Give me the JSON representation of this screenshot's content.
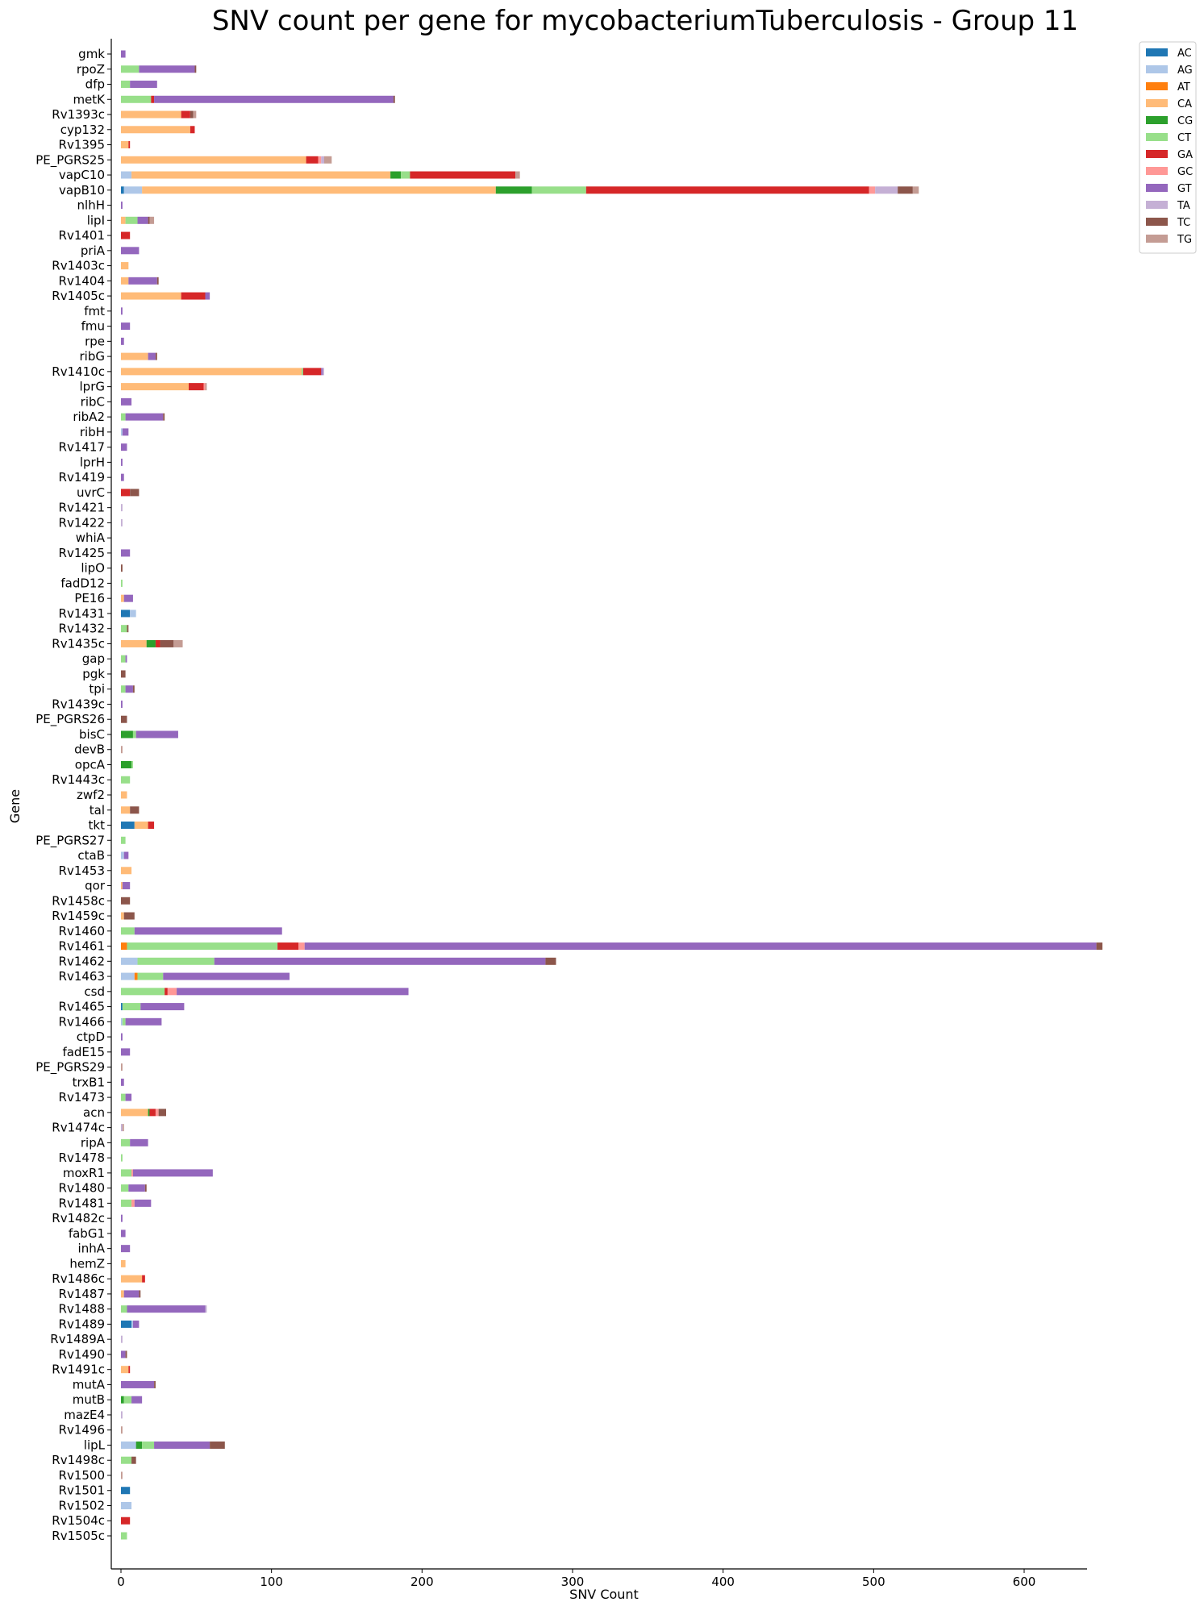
{
  "chart_data": {
    "type": "bar",
    "orientation": "horizontal",
    "stacked": true,
    "title": "SNV count per gene for mycobacteriumTuberculosis - Group 11",
    "xlabel": "SNV Count",
    "ylabel": "Gene",
    "xlim": [
      0,
      652
    ],
    "xticks": [
      0,
      100,
      200,
      300,
      400,
      500,
      600
    ],
    "grid": false,
    "legend_position": "top-right outside",
    "categories": [
      "gmk",
      "rpoZ",
      "dfp",
      "metK",
      "Rv1393c",
      "cyp132",
      "Rv1395",
      "PE_PGRS25",
      "vapC10",
      "vapB10",
      "nlhH",
      "lipI",
      "Rv1401",
      "priA",
      "Rv1403c",
      "Rv1404",
      "Rv1405c",
      "fmt",
      "fmu",
      "rpe",
      "ribG",
      "Rv1410c",
      "lprG",
      "ribC",
      "ribA2",
      "ribH",
      "Rv1417",
      "lprH",
      "Rv1419",
      "uvrC",
      "Rv1421",
      "Rv1422",
      "whiA",
      "Rv1425",
      "lipO",
      "fadD12",
      "PE16",
      "Rv1431",
      "Rv1432",
      "Rv1435c",
      "gap",
      "pgk",
      "tpi",
      "Rv1439c",
      "PE_PGRS26",
      "bisC",
      "devB",
      "opcA",
      "Rv1443c",
      "zwf2",
      "tal",
      "tkt",
      "PE_PGRS27",
      "ctaB",
      "Rv1453",
      "qor",
      "Rv1458c",
      "Rv1459c",
      "Rv1460",
      "Rv1461",
      "Rv1462",
      "Rv1463",
      "csd",
      "Rv1465",
      "Rv1466",
      "ctpD",
      "fadE15",
      "PE_PGRS29",
      "trxB1",
      "Rv1473",
      "acn",
      "Rv1474c",
      "ripA",
      "Rv1478",
      "moxR1",
      "Rv1480",
      "Rv1481",
      "Rv1482c",
      "fabG1",
      "inhA",
      "hemZ",
      "Rv1486c",
      "Rv1487",
      "Rv1488",
      "Rv1489",
      "Rv1489A",
      "Rv1490",
      "Rv1491c",
      "mutA",
      "mutB",
      "mazE4",
      "Rv1496",
      "lipL",
      "Rv1498c",
      "Rv1500",
      "Rv1501",
      "Rv1502",
      "Rv1504c",
      "Rv1505c"
    ],
    "series": [
      {
        "name": "AC",
        "color": "#1f77b4",
        "values": [
          0,
          0,
          0,
          0,
          0,
          0,
          0,
          0,
          0,
          2,
          0,
          0,
          0,
          0,
          0,
          0,
          0,
          0,
          0,
          0,
          0,
          0,
          0,
          0,
          0,
          0,
          0,
          0,
          0,
          0,
          0,
          0,
          0,
          0,
          0,
          0,
          0,
          6,
          0,
          0,
          0,
          0,
          0,
          0,
          0,
          0,
          0,
          0,
          0,
          0,
          0,
          9,
          0,
          0,
          0,
          0,
          0,
          0,
          0,
          0,
          0,
          0,
          0,
          1,
          0,
          0,
          0,
          0,
          0,
          0,
          0,
          0,
          0,
          0,
          0,
          0,
          0,
          0,
          0,
          0,
          0,
          0,
          0,
          0,
          7,
          0,
          0,
          0,
          0,
          0,
          0,
          0,
          0,
          0,
          0,
          6,
          0,
          0,
          0
        ]
      },
      {
        "name": "AG",
        "color": "#aec7e8",
        "values": [
          0,
          0,
          0,
          0,
          0,
          0,
          0,
          0,
          7,
          12,
          0,
          0,
          0,
          0,
          0,
          0,
          0,
          0,
          0,
          0,
          0,
          0,
          0,
          0,
          0,
          1,
          0,
          0,
          0,
          0,
          0,
          0,
          0,
          0,
          0,
          0,
          0,
          4,
          0,
          0,
          0,
          0,
          0,
          0,
          0,
          0,
          0,
          0,
          0,
          0,
          0,
          0,
          0,
          2,
          0,
          0,
          0,
          0,
          0,
          0,
          11,
          9,
          0,
          0,
          1,
          0,
          0,
          0,
          0,
          0,
          0,
          0,
          0,
          0,
          0,
          0,
          0,
          0,
          0,
          0,
          0,
          0,
          0,
          0,
          1,
          0,
          0,
          0,
          0,
          0,
          0,
          0,
          10,
          0,
          0,
          0,
          7,
          0,
          0
        ]
      },
      {
        "name": "AT",
        "color": "#ff7f0e",
        "values": [
          0,
          0,
          0,
          0,
          0,
          0,
          0,
          0,
          0,
          0,
          0,
          0,
          0,
          0,
          0,
          0,
          0,
          0,
          0,
          0,
          0,
          0,
          0,
          0,
          0,
          0,
          0,
          0,
          0,
          0,
          0,
          0,
          0,
          0,
          0,
          0,
          0,
          0,
          0,
          0,
          0,
          0,
          0,
          0,
          0,
          0,
          0,
          0,
          0,
          0,
          0,
          0,
          0,
          0,
          0,
          0,
          0,
          0,
          0,
          4,
          0,
          2,
          0,
          0,
          0,
          0,
          0,
          0,
          0,
          0,
          0,
          0,
          0,
          0,
          0,
          0,
          0,
          0,
          0,
          0,
          0,
          0,
          0,
          0,
          0,
          0,
          0,
          0,
          0,
          0,
          0,
          0,
          0,
          0,
          0,
          0,
          0,
          0,
          0
        ]
      },
      {
        "name": "CA",
        "color": "#ffbb78",
        "values": [
          0,
          0,
          0,
          0,
          40,
          46,
          5,
          123,
          172,
          235,
          0,
          3,
          0,
          0,
          5,
          5,
          40,
          0,
          0,
          0,
          18,
          120,
          45,
          0,
          0,
          0,
          0,
          0,
          0,
          0,
          0,
          0,
          0,
          0,
          0,
          0,
          2,
          0,
          0,
          17,
          0,
          0,
          0,
          0,
          0,
          0,
          0,
          0,
          0,
          4,
          6,
          9,
          0,
          0,
          7,
          1,
          0,
          2,
          0,
          0,
          0,
          0,
          0,
          0,
          0,
          0,
          0,
          0,
          0,
          0,
          18,
          0,
          0,
          0,
          0,
          0,
          0,
          0,
          0,
          0,
          3,
          14,
          2,
          0,
          0,
          0,
          0,
          5,
          0,
          0,
          0,
          0,
          0,
          0,
          0,
          0,
          0,
          0,
          0
        ]
      },
      {
        "name": "CG",
        "color": "#2ca02c",
        "values": [
          0,
          0,
          0,
          0,
          0,
          0,
          0,
          0,
          7,
          24,
          0,
          0,
          0,
          0,
          0,
          0,
          0,
          0,
          0,
          0,
          0,
          0,
          0,
          0,
          0,
          0,
          0,
          0,
          0,
          0,
          0,
          0,
          0,
          0,
          0,
          0,
          0,
          0,
          0,
          6,
          0,
          0,
          0,
          0,
          0,
          8,
          0,
          7,
          0,
          0,
          0,
          0,
          0,
          0,
          0,
          0,
          0,
          0,
          0,
          0,
          0,
          0,
          0,
          0,
          0,
          0,
          0,
          0,
          0,
          0,
          1,
          0,
          0,
          0,
          0,
          0,
          0,
          0,
          0,
          0,
          0,
          0,
          0,
          0,
          0,
          0,
          0,
          0,
          0,
          2,
          0,
          0,
          4,
          0,
          0,
          0,
          0,
          0,
          0
        ]
      },
      {
        "name": "CT",
        "color": "#98df8a",
        "values": [
          0,
          12,
          6,
          20,
          0,
          0,
          0,
          0,
          6,
          36,
          0,
          8,
          0,
          0,
          0,
          0,
          0,
          0,
          0,
          0,
          0,
          1,
          0,
          0,
          3,
          0,
          0,
          0,
          0,
          0,
          0,
          0,
          0,
          0,
          0,
          1,
          0,
          0,
          4,
          0,
          3,
          0,
          3,
          0,
          0,
          2,
          0,
          1,
          6,
          0,
          0,
          0,
          3,
          0,
          0,
          0,
          0,
          0,
          9,
          100,
          51,
          17,
          29,
          12,
          2,
          0,
          0,
          0,
          0,
          3,
          0,
          0,
          6,
          1,
          7,
          5,
          7,
          0,
          0,
          0,
          0,
          0,
          0,
          4,
          0,
          0,
          0,
          0,
          0,
          5,
          0,
          0,
          8,
          7,
          0,
          0,
          0,
          0,
          4
        ]
      },
      {
        "name": "GA",
        "color": "#d62728",
        "values": [
          0,
          0,
          0,
          2,
          6,
          3,
          1,
          8,
          70,
          188,
          0,
          0,
          6,
          0,
          0,
          0,
          16,
          0,
          0,
          0,
          0,
          12,
          10,
          0,
          0,
          0,
          0,
          0,
          0,
          6,
          0,
          0,
          0,
          0,
          0,
          0,
          0,
          0,
          0,
          3,
          0,
          0,
          0,
          0,
          0,
          0,
          0,
          0,
          0,
          0,
          0,
          4,
          0,
          0,
          0,
          0,
          0,
          0,
          0,
          14,
          0,
          0,
          2,
          0,
          0,
          0,
          0,
          0,
          0,
          0,
          4,
          0,
          0,
          0,
          0,
          0,
          0,
          0,
          0,
          0,
          0,
          2,
          0,
          0,
          0,
          0,
          0,
          1,
          0,
          0,
          0,
          0,
          0,
          0,
          0,
          0,
          0,
          6,
          0
        ]
      },
      {
        "name": "GC",
        "color": "#ff9896",
        "values": [
          0,
          0,
          0,
          0,
          0,
          0,
          0,
          2,
          0,
          4,
          0,
          0,
          0,
          0,
          0,
          0,
          0,
          0,
          0,
          0,
          0,
          0,
          1,
          0,
          0,
          0,
          0,
          0,
          0,
          0,
          0,
          0,
          0,
          0,
          0,
          0,
          0,
          0,
          0,
          0,
          0,
          0,
          0,
          0,
          0,
          0,
          0,
          0,
          0,
          0,
          0,
          0,
          0,
          0,
          0,
          0,
          0,
          0,
          0,
          4,
          0,
          0,
          6,
          0,
          0,
          0,
          0,
          0,
          0,
          0,
          2,
          0,
          0,
          0,
          1,
          0,
          2,
          0,
          0,
          0,
          0,
          0,
          0,
          0,
          0,
          0,
          0,
          0,
          0,
          0,
          0,
          0,
          0,
          0,
          0,
          0,
          0,
          0,
          0
        ]
      },
      {
        "name": "GT",
        "color": "#9467bd",
        "values": [
          3,
          37,
          18,
          159,
          0,
          0,
          0,
          0,
          0,
          0,
          1,
          7,
          0,
          12,
          0,
          19,
          3,
          1,
          6,
          2,
          5,
          1,
          0,
          7,
          25,
          4,
          4,
          1,
          2,
          0,
          0,
          0,
          0,
          6,
          0,
          0,
          6,
          0,
          0,
          0,
          1,
          0,
          5,
          1,
          0,
          28,
          0,
          0,
          0,
          0,
          0,
          0,
          0,
          3,
          0,
          5,
          0,
          0,
          98,
          526,
          220,
          84,
          154,
          29,
          24,
          1,
          6,
          0,
          2,
          4,
          0,
          0,
          12,
          0,
          53,
          11,
          11,
          1,
          3,
          6,
          0,
          0,
          10,
          52,
          4,
          0,
          3,
          0,
          22,
          7,
          0,
          0,
          37,
          0,
          0,
          0,
          0,
          0,
          0
        ]
      },
      {
        "name": "TA",
        "color": "#c5b0d5",
        "values": [
          0,
          0,
          0,
          0,
          0,
          0,
          0,
          2,
          0,
          15,
          0,
          0,
          0,
          0,
          0,
          0,
          0,
          0,
          0,
          0,
          0,
          1,
          0,
          0,
          0,
          0,
          0,
          0,
          0,
          0,
          1,
          1,
          0,
          0,
          0,
          0,
          0,
          0,
          0,
          0,
          0,
          0,
          0,
          0,
          0,
          0,
          0,
          0,
          0,
          0,
          0,
          0,
          0,
          0,
          0,
          0,
          0,
          0,
          0,
          0,
          0,
          0,
          0,
          0,
          0,
          0,
          0,
          0,
          0,
          0,
          0,
          1,
          0,
          0,
          0,
          0,
          0,
          0,
          0,
          0,
          0,
          0,
          0,
          1,
          0,
          1,
          0,
          0,
          0,
          0,
          1,
          0,
          0,
          0,
          0,
          0,
          0,
          0,
          0
        ]
      },
      {
        "name": "TC",
        "color": "#8c564b",
        "values": [
          0,
          1,
          0,
          1,
          2,
          0,
          0,
          0,
          0,
          10,
          0,
          1,
          0,
          0,
          0,
          1,
          0,
          0,
          0,
          0,
          1,
          0,
          0,
          0,
          1,
          0,
          0,
          0,
          0,
          6,
          0,
          0,
          0,
          0,
          1,
          0,
          0,
          0,
          1,
          9,
          0,
          3,
          1,
          0,
          4,
          0,
          0,
          0,
          0,
          0,
          6,
          0,
          0,
          0,
          0,
          0,
          6,
          7,
          0,
          4,
          7,
          0,
          0,
          0,
          0,
          0,
          0,
          0,
          0,
          0,
          5,
          0,
          0,
          0,
          0,
          1,
          0,
          0,
          0,
          0,
          0,
          0,
          1,
          0,
          0,
          0,
          1,
          0,
          1,
          0,
          0,
          0,
          10,
          3,
          0,
          0,
          0,
          0,
          0
        ]
      },
      {
        "name": "TG",
        "color": "#c49c94",
        "values": [
          0,
          0,
          0,
          0,
          2,
          0,
          0,
          5,
          3,
          4,
          0,
          3,
          0,
          0,
          0,
          0,
          0,
          0,
          0,
          0,
          0,
          0,
          1,
          0,
          0,
          0,
          0,
          0,
          0,
          0,
          0,
          0,
          0,
          0,
          0,
          0,
          0,
          0,
          0,
          6,
          0,
          0,
          0,
          0,
          0,
          0,
          1,
          0,
          0,
          0,
          0,
          0,
          0,
          0,
          0,
          0,
          0,
          0,
          0,
          0,
          0,
          0,
          0,
          0,
          0,
          0,
          0,
          1,
          0,
          0,
          0,
          1,
          0,
          0,
          0,
          0,
          0,
          0,
          0,
          0,
          0,
          0,
          0,
          0,
          0,
          0,
          0,
          0,
          0,
          0,
          0,
          1,
          0,
          0,
          1,
          0,
          0,
          0,
          0
        ]
      }
    ]
  }
}
